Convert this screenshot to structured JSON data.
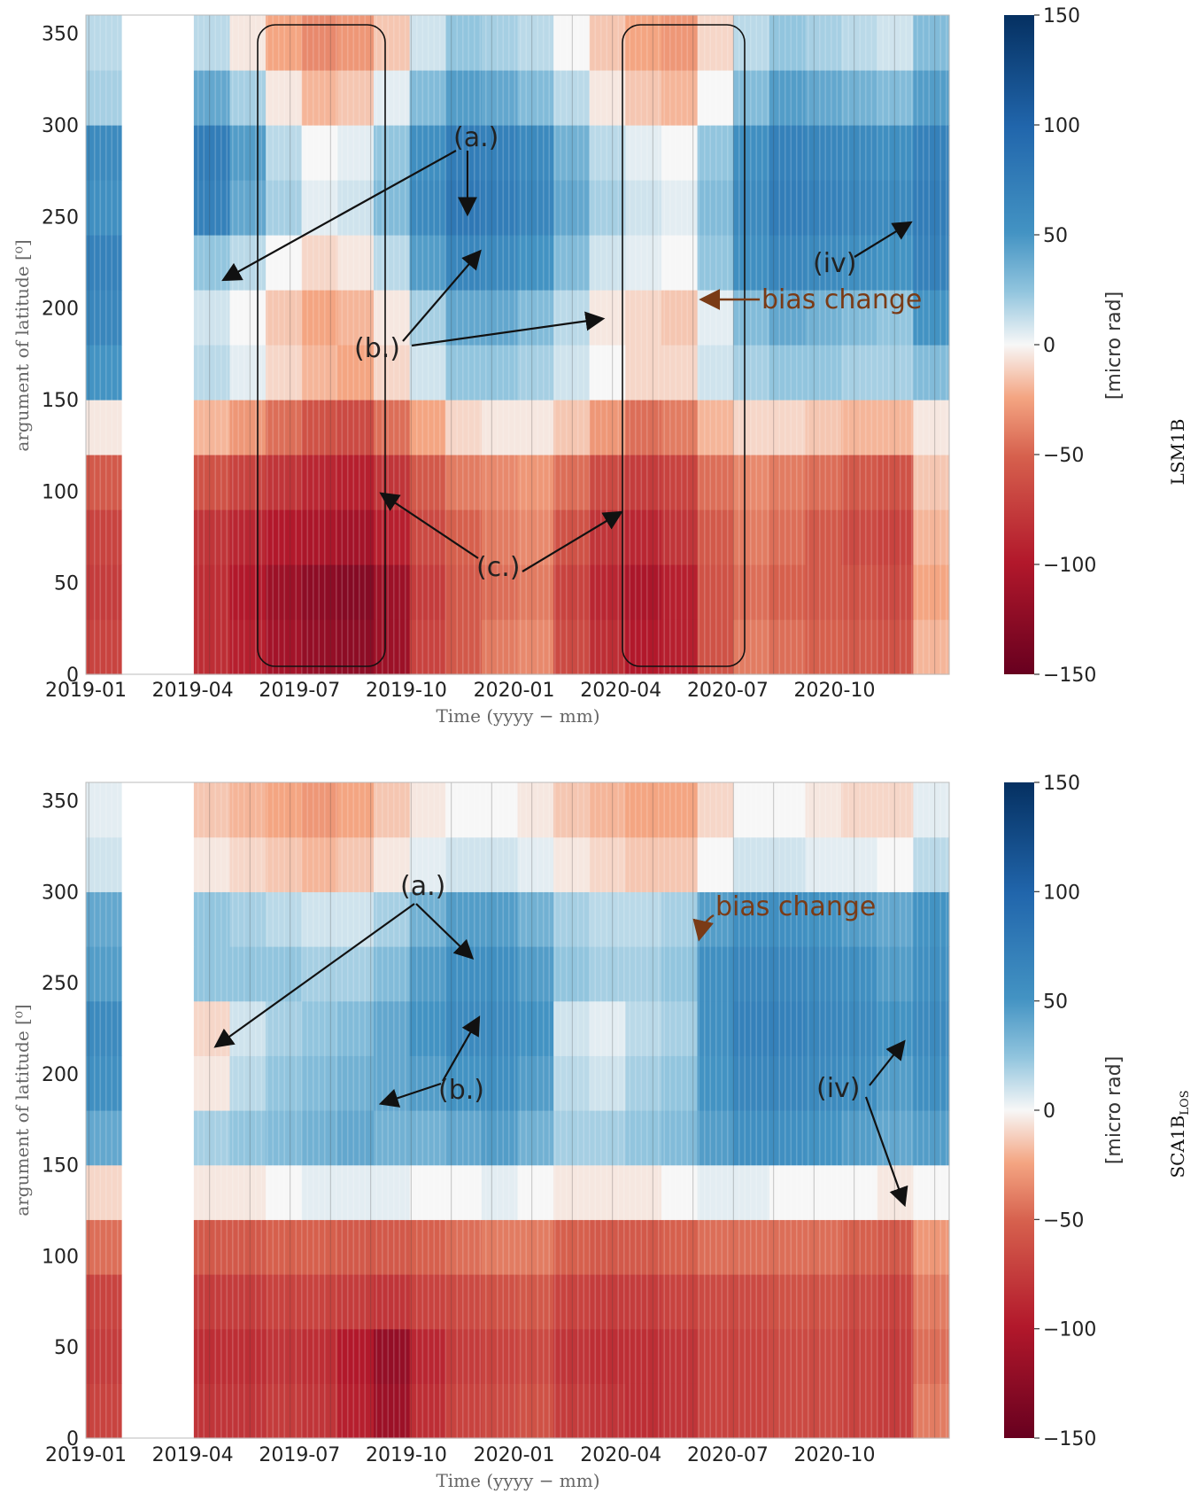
{
  "colors": {
    "neg_max": "#67001f",
    "neg_mid": "#d6604d",
    "zero": "#f7f7f7",
    "pos_mid": "#4393c3",
    "pos_max": "#053061",
    "arrow": "#111111",
    "bias_arrow": "#7a3b16"
  },
  "chart_data": [
    {
      "type": "heatmap",
      "panel": "top",
      "side_label": "LSM1B",
      "xlabel": "Time (yyyy − mm)",
      "ylabel": "argument of latitude [⁰]",
      "x_tick_labels": [
        "2019-01",
        "2019-04",
        "2019-07",
        "2019-10",
        "2020-01",
        "2020-04",
        "2020-07",
        "2020-10"
      ],
      "y_tick_labels": [
        "0",
        "50",
        "100",
        "150",
        "200",
        "250",
        "300",
        "350"
      ],
      "ylim": [
        0,
        360
      ],
      "colorbar": {
        "label": "[micro rad]",
        "ticks": [
          "150",
          "100",
          "50",
          "0",
          "−50",
          "−100",
          "−150"
        ],
        "range": [
          -150,
          150
        ]
      },
      "annotations": [
        "(a.)",
        "(b.)",
        "(c.)",
        "(iv)",
        "bias change"
      ],
      "x_months": [
        "2019-01",
        "2019-02",
        "2019-03",
        "2019-04",
        "2019-05",
        "2019-06",
        "2019-07",
        "2019-08",
        "2019-09",
        "2019-10",
        "2019-11",
        "2019-12",
        "2020-01",
        "2020-02",
        "2020-03",
        "2020-04",
        "2020-05",
        "2020-06",
        "2020-07",
        "2020-08",
        "2020-09",
        "2020-10",
        "2020-11",
        "2020-12"
      ],
      "y_bands": [
        "0-30",
        "30-60",
        "60-90",
        "90-120",
        "120-150",
        "150-180",
        "180-210",
        "210-240",
        "240-270",
        "270-300",
        "300-330",
        "330-360"
      ],
      "values": [
        [
          -70,
          null,
          null,
          -85,
          -95,
          -110,
          -120,
          -125,
          -115,
          -70,
          -55,
          -40,
          -35,
          -65,
          -85,
          -100,
          -95,
          -60,
          -40,
          -45,
          -50,
          -55,
          -60,
          -20
        ],
        [
          -75,
          null,
          null,
          -85,
          -100,
          -115,
          -125,
          -130,
          -115,
          -75,
          -55,
          -45,
          -40,
          -70,
          -90,
          -105,
          -95,
          -60,
          -45,
          -50,
          -55,
          -60,
          -65,
          -25
        ],
        [
          -70,
          null,
          null,
          -80,
          -90,
          -100,
          -105,
          -110,
          -95,
          -65,
          -50,
          -40,
          -35,
          -60,
          -80,
          -90,
          -80,
          -55,
          -40,
          -45,
          -55,
          -65,
          -70,
          -20
        ],
        [
          -55,
          null,
          null,
          -60,
          -70,
          -80,
          -90,
          -95,
          -80,
          -55,
          -40,
          -35,
          -30,
          -45,
          -65,
          -75,
          -70,
          -45,
          -35,
          -40,
          -45,
          -55,
          -60,
          -15
        ],
        [
          -5,
          null,
          null,
          -20,
          -30,
          -45,
          -60,
          -65,
          -45,
          -25,
          -10,
          -5,
          -5,
          -15,
          -30,
          -45,
          -40,
          -20,
          -10,
          -10,
          -15,
          -20,
          -20,
          -5
        ],
        [
          50,
          null,
          null,
          15,
          5,
          -10,
          -20,
          -25,
          -10,
          10,
          25,
          25,
          20,
          10,
          0,
          -10,
          -10,
          10,
          20,
          25,
          25,
          20,
          20,
          30
        ],
        [
          65,
          null,
          null,
          10,
          0,
          -15,
          -25,
          -20,
          -5,
          20,
          40,
          40,
          30,
          15,
          -5,
          -10,
          -15,
          5,
          30,
          40,
          35,
          30,
          25,
          50
        ],
        [
          70,
          null,
          null,
          25,
          15,
          0,
          -10,
          -5,
          15,
          45,
          65,
          60,
          50,
          30,
          10,
          5,
          0,
          25,
          55,
          65,
          60,
          55,
          50,
          70
        ],
        [
          55,
          null,
          null,
          70,
          40,
          20,
          5,
          10,
          30,
          60,
          80,
          75,
          65,
          40,
          20,
          10,
          5,
          30,
          60,
          75,
          70,
          65,
          60,
          75
        ],
        [
          60,
          null,
          null,
          75,
          45,
          15,
          0,
          5,
          25,
          55,
          75,
          70,
          60,
          35,
          15,
          5,
          0,
          25,
          55,
          70,
          65,
          60,
          55,
          70
        ],
        [
          20,
          null,
          null,
          40,
          20,
          -5,
          -20,
          -15,
          5,
          30,
          45,
          40,
          30,
          15,
          -5,
          -15,
          -20,
          0,
          30,
          45,
          40,
          35,
          30,
          45
        ],
        [
          15,
          null,
          null,
          15,
          -5,
          -25,
          -35,
          -30,
          -15,
          10,
          25,
          20,
          15,
          0,
          -15,
          -25,
          -30,
          -10,
          15,
          25,
          20,
          15,
          10,
          30
        ]
      ]
    },
    {
      "type": "heatmap",
      "panel": "bottom",
      "side_label": "SCA1B",
      "side_label_sub": "LOS",
      "xlabel": "Time (yyyy − mm)",
      "ylabel": "argument of latitude [⁰]",
      "x_tick_labels": [
        "2019-01",
        "2019-04",
        "2019-07",
        "2019-10",
        "2020-01",
        "2020-04",
        "2020-07",
        "2020-10"
      ],
      "y_tick_labels": [
        "0",
        "50",
        "100",
        "150",
        "200",
        "250",
        "300",
        "350"
      ],
      "ylim": [
        0,
        360
      ],
      "colorbar": {
        "label": "[micro rad]",
        "ticks": [
          "150",
          "100",
          "50",
          "0",
          "−50",
          "−100",
          "−150"
        ],
        "range": [
          -150,
          150
        ]
      },
      "annotations": [
        "(a.)",
        "(b.)",
        "(iv)",
        "bias change"
      ],
      "x_months": [
        "2019-01",
        "2019-02",
        "2019-03",
        "2019-04",
        "2019-05",
        "2019-06",
        "2019-07",
        "2019-08",
        "2019-09",
        "2019-10",
        "2019-11",
        "2019-12",
        "2020-01",
        "2020-02",
        "2020-03",
        "2020-04",
        "2020-05",
        "2020-06",
        "2020-07",
        "2020-08",
        "2020-09",
        "2020-10",
        "2020-11",
        "2020-12"
      ],
      "y_bands": [
        "0-30",
        "30-60",
        "60-90",
        "90-120",
        "120-150",
        "150-180",
        "180-210",
        "210-240",
        "240-270",
        "270-300",
        "300-330",
        "330-360"
      ],
      "values": [
        [
          -70,
          null,
          null,
          -80,
          -80,
          -75,
          -80,
          -95,
          -115,
          -85,
          -70,
          -65,
          -60,
          -75,
          -80,
          -85,
          -80,
          -70,
          -70,
          -65,
          -65,
          -70,
          -75,
          -40
        ],
        [
          -75,
          null,
          null,
          -85,
          -85,
          -80,
          -85,
          -100,
          -120,
          -90,
          -75,
          -70,
          -65,
          -80,
          -85,
          -85,
          -80,
          -70,
          -70,
          -65,
          -65,
          -70,
          -75,
          -45
        ],
        [
          -70,
          null,
          null,
          -75,
          -75,
          -70,
          -70,
          -75,
          -80,
          -70,
          -65,
          -60,
          -55,
          -70,
          -75,
          -75,
          -70,
          -65,
          -65,
          -60,
          -60,
          -65,
          -70,
          -40
        ],
        [
          -45,
          null,
          null,
          -55,
          -55,
          -50,
          -50,
          -55,
          -55,
          -50,
          -45,
          -40,
          -40,
          -50,
          -55,
          -55,
          -50,
          -45,
          -45,
          -45,
          -45,
          -50,
          -55,
          -30
        ],
        [
          -10,
          null,
          null,
          -5,
          -5,
          0,
          5,
          5,
          5,
          0,
          0,
          5,
          0,
          -5,
          -5,
          -5,
          0,
          5,
          5,
          0,
          0,
          0,
          -5,
          0
        ],
        [
          40,
          null,
          null,
          20,
          25,
          30,
          35,
          40,
          35,
          35,
          40,
          45,
          35,
          20,
          20,
          25,
          30,
          45,
          55,
          55,
          50,
          45,
          40,
          45
        ],
        [
          55,
          null,
          null,
          -5,
          15,
          25,
          30,
          35,
          40,
          45,
          50,
          55,
          45,
          15,
          10,
          20,
          25,
          50,
          65,
          65,
          60,
          55,
          45,
          55
        ],
        [
          60,
          null,
          null,
          -10,
          10,
          20,
          25,
          30,
          40,
          50,
          60,
          60,
          50,
          10,
          5,
          15,
          20,
          55,
          70,
          70,
          65,
          60,
          50,
          60
        ],
        [
          45,
          null,
          null,
          25,
          25,
          25,
          20,
          20,
          30,
          45,
          55,
          55,
          45,
          25,
          20,
          20,
          25,
          55,
          65,
          65,
          60,
          55,
          45,
          55
        ],
        [
          40,
          null,
          null,
          25,
          20,
          15,
          10,
          10,
          20,
          35,
          45,
          45,
          35,
          20,
          15,
          15,
          20,
          45,
          55,
          55,
          50,
          45,
          40,
          50
        ],
        [
          10,
          null,
          null,
          -5,
          -10,
          -15,
          -20,
          -15,
          -5,
          5,
          10,
          10,
          5,
          -5,
          -10,
          -15,
          -15,
          0,
          10,
          10,
          5,
          5,
          0,
          15
        ],
        [
          5,
          null,
          null,
          -15,
          -20,
          -25,
          -30,
          -25,
          -15,
          -5,
          0,
          0,
          -5,
          -15,
          -20,
          -25,
          -25,
          -10,
          0,
          0,
          -5,
          -10,
          -10,
          5
        ]
      ]
    }
  ]
}
